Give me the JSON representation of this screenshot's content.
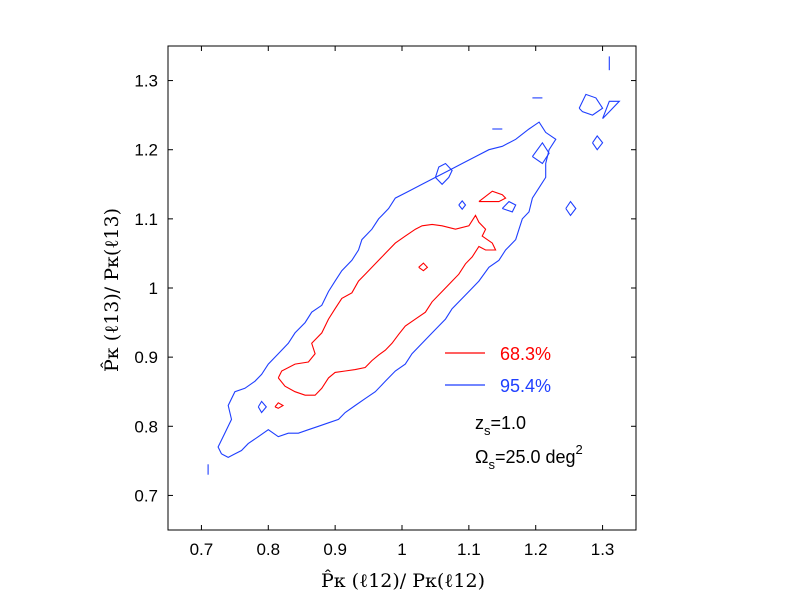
{
  "chart_data": {
    "type": "line",
    "title": "",
    "xlabel": "P̂κ (ℓ12)/ Pκ(ℓ12)",
    "ylabel": "P̂κ (ℓ13)/ Pκ(ℓ13)",
    "xlim": [
      0.65,
      1.35
    ],
    "ylim": [
      0.65,
      1.35
    ],
    "xticks": [
      0.7,
      0.8,
      0.9,
      1.0,
      1.1,
      1.2,
      1.3
    ],
    "xtick_labels": [
      "0.7",
      "0.8",
      "0.9",
      "1",
      "1.1",
      "1.2",
      "1.3"
    ],
    "yticks": [
      0.7,
      0.8,
      0.9,
      1.0,
      1.1,
      1.2,
      1.3
    ],
    "ytick_labels": [
      "0.7",
      "0.8",
      "0.9",
      "1",
      "1.1",
      "1.2",
      "1.3"
    ],
    "grid": false,
    "legend_position": "lower-right",
    "series": [
      {
        "name": "68.3%",
        "color": "#ff0000",
        "contours": [
          [
            [
              0.815,
              0.87
            ],
            [
              0.82,
              0.88
            ],
            [
              0.84,
              0.89
            ],
            [
              0.86,
              0.893
            ],
            [
              0.87,
              0.905
            ],
            [
              0.865,
              0.92
            ],
            [
              0.88,
              0.935
            ],
            [
              0.89,
              0.955
            ],
            [
              0.9,
              0.97
            ],
            [
              0.91,
              0.985
            ],
            [
              0.925,
              0.993
            ],
            [
              0.935,
              1.01
            ],
            [
              0.945,
              1.02
            ],
            [
              0.96,
              1.035
            ],
            [
              0.975,
              1.05
            ],
            [
              0.99,
              1.065
            ],
            [
              1.005,
              1.075
            ],
            [
              1.02,
              1.085
            ],
            [
              1.03,
              1.09
            ],
            [
              1.045,
              1.092
            ],
            [
              1.06,
              1.09
            ],
            [
              1.08,
              1.085
            ],
            [
              1.1,
              1.09
            ],
            [
              1.11,
              1.105
            ],
            [
              1.115,
              1.095
            ],
            [
              1.125,
              1.085
            ],
            [
              1.12,
              1.075
            ],
            [
              1.135,
              1.065
            ],
            [
              1.14,
              1.055
            ],
            [
              1.125,
              1.055
            ],
            [
              1.115,
              1.06
            ],
            [
              1.105,
              1.045
            ],
            [
              1.095,
              1.035
            ],
            [
              1.085,
              1.02
            ],
            [
              1.075,
              1.01
            ],
            [
              1.06,
              0.995
            ],
            [
              1.045,
              0.98
            ],
            [
              1.035,
              0.965
            ],
            [
              1.02,
              0.955
            ],
            [
              1.005,
              0.945
            ],
            [
              0.995,
              0.933
            ],
            [
              0.985,
              0.92
            ],
            [
              0.975,
              0.91
            ],
            [
              0.965,
              0.903
            ],
            [
              0.955,
              0.895
            ],
            [
              0.945,
              0.885
            ],
            [
              0.93,
              0.882
            ],
            [
              0.915,
              0.88
            ],
            [
              0.9,
              0.878
            ],
            [
              0.89,
              0.87
            ],
            [
              0.88,
              0.855
            ],
            [
              0.87,
              0.845
            ],
            [
              0.855,
              0.845
            ],
            [
              0.84,
              0.85
            ],
            [
              0.825,
              0.858
            ],
            [
              0.815,
              0.87
            ]
          ],
          [
            [
              0.81,
              0.828
            ],
            [
              0.815,
              0.834
            ],
            [
              0.822,
              0.83
            ],
            [
              0.815,
              0.826
            ],
            [
              0.81,
              0.828
            ]
          ],
          [
            [
              1.025,
              1.03
            ],
            [
              1.032,
              1.036
            ],
            [
              1.038,
              1.03
            ],
            [
              1.032,
              1.025
            ],
            [
              1.025,
              1.03
            ]
          ],
          [
            [
              1.115,
              1.125
            ],
            [
              1.135,
              1.14
            ],
            [
              1.15,
              1.135
            ],
            [
              1.155,
              1.13
            ],
            [
              1.145,
              1.125
            ],
            [
              1.13,
              1.125
            ],
            [
              1.115,
              1.125
            ]
          ]
        ]
      },
      {
        "name": "95.4%",
        "color": "#1f3fff",
        "contours": [
          [
            [
              0.73,
              0.76
            ],
            [
              0.725,
              0.77
            ],
            [
              0.735,
              0.79
            ],
            [
              0.745,
              0.81
            ],
            [
              0.74,
              0.83
            ],
            [
              0.75,
              0.85
            ],
            [
              0.765,
              0.855
            ],
            [
              0.78,
              0.865
            ],
            [
              0.79,
              0.875
            ],
            [
              0.8,
              0.89
            ],
            [
              0.815,
              0.905
            ],
            [
              0.83,
              0.92
            ],
            [
              0.84,
              0.935
            ],
            [
              0.855,
              0.95
            ],
            [
              0.865,
              0.965
            ],
            [
              0.88,
              0.975
            ],
            [
              0.89,
              0.995
            ],
            [
              0.9,
              1.01
            ],
            [
              0.91,
              1.025
            ],
            [
              0.925,
              1.04
            ],
            [
              0.935,
              1.055
            ],
            [
              0.94,
              1.07
            ],
            [
              0.955,
              1.085
            ],
            [
              0.965,
              1.1
            ],
            [
              0.98,
              1.115
            ],
            [
              0.99,
              1.13
            ],
            [
              1.01,
              1.14
            ],
            [
              1.03,
              1.15
            ],
            [
              1.05,
              1.16
            ],
            [
              1.07,
              1.17
            ],
            [
              1.09,
              1.18
            ],
            [
              1.11,
              1.19
            ],
            [
              1.13,
              1.2
            ],
            [
              1.15,
              1.205
            ],
            [
              1.17,
              1.215
            ],
            [
              1.19,
              1.23
            ],
            [
              1.205,
              1.24
            ],
            [
              1.215,
              1.225
            ],
            [
              1.23,
              1.215
            ],
            [
              1.22,
              1.2
            ],
            [
              1.215,
              1.18
            ],
            [
              1.215,
              1.16
            ],
            [
              1.205,
              1.145
            ],
            [
              1.195,
              1.13
            ],
            [
              1.19,
              1.11
            ],
            [
              1.18,
              1.1
            ],
            [
              1.175,
              1.085
            ],
            [
              1.17,
              1.07
            ],
            [
              1.155,
              1.055
            ],
            [
              1.145,
              1.04
            ],
            [
              1.13,
              1.03
            ],
            [
              1.115,
              1.01
            ],
            [
              1.1,
              0.995
            ],
            [
              1.09,
              0.985
            ],
            [
              1.075,
              0.97
            ],
            [
              1.065,
              0.955
            ],
            [
              1.055,
              0.945
            ],
            [
              1.045,
              0.935
            ],
            [
              1.03,
              0.92
            ],
            [
              1.015,
              0.905
            ],
            [
              1.005,
              0.89
            ],
            [
              0.99,
              0.88
            ],
            [
              0.975,
              0.865
            ],
            [
              0.96,
              0.85
            ],
            [
              0.945,
              0.84
            ],
            [
              0.93,
              0.83
            ],
            [
              0.915,
              0.82
            ],
            [
              0.905,
              0.81
            ],
            [
              0.89,
              0.805
            ],
            [
              0.875,
              0.8
            ],
            [
              0.86,
              0.795
            ],
            [
              0.845,
              0.79
            ],
            [
              0.83,
              0.79
            ],
            [
              0.815,
              0.785
            ],
            [
              0.8,
              0.795
            ],
            [
              0.785,
              0.785
            ],
            [
              0.77,
              0.775
            ],
            [
              0.76,
              0.765
            ],
            [
              0.75,
              0.76
            ],
            [
              0.74,
              0.755
            ],
            [
              0.73,
              0.76
            ]
          ],
          [
            [
              0.785,
              0.828
            ],
            [
              0.79,
              0.836
            ],
            [
              0.797,
              0.828
            ],
            [
              0.79,
              0.82
            ],
            [
              0.785,
              0.828
            ]
          ],
          [
            [
              1.05,
              1.16
            ],
            [
              1.055,
              1.175
            ],
            [
              1.065,
              1.18
            ],
            [
              1.075,
              1.17
            ],
            [
              1.07,
              1.16
            ],
            [
              1.06,
              1.15
            ],
            [
              1.05,
              1.16
            ]
          ],
          [
            [
              1.085,
              1.12
            ],
            [
              1.09,
              1.126
            ],
            [
              1.095,
              1.12
            ],
            [
              1.09,
              1.114
            ],
            [
              1.085,
              1.12
            ]
          ],
          [
            [
              1.15,
              1.115
            ],
            [
              1.16,
              1.125
            ],
            [
              1.17,
              1.12
            ],
            [
              1.165,
              1.11
            ],
            [
              1.15,
              1.115
            ]
          ],
          [
            [
              1.195,
              1.19
            ],
            [
              1.21,
              1.21
            ],
            [
              1.22,
              1.195
            ],
            [
              1.21,
              1.18
            ],
            [
              1.195,
              1.19
            ]
          ],
          [
            [
              1.245,
              1.115
            ],
            [
              1.252,
              1.125
            ],
            [
              1.26,
              1.115
            ],
            [
              1.252,
              1.105
            ],
            [
              1.245,
              1.115
            ]
          ],
          [
            [
              1.285,
              1.21
            ],
            [
              1.292,
              1.22
            ],
            [
              1.3,
              1.21
            ],
            [
              1.292,
              1.2
            ],
            [
              1.285,
              1.21
            ]
          ],
          [
            [
              1.265,
              1.26
            ],
            [
              1.275,
              1.28
            ],
            [
              1.29,
              1.275
            ],
            [
              1.3,
              1.26
            ],
            [
              1.285,
              1.25
            ],
            [
              1.27,
              1.255
            ],
            [
              1.265,
              1.26
            ]
          ],
          [
            [
              1.3,
              1.245
            ],
            [
              1.31,
              1.27
            ],
            [
              1.325,
              1.27
            ],
            [
              1.31,
              1.255
            ],
            [
              1.3,
              1.245
            ]
          ],
          [
            [
              1.195,
              1.275
            ],
            [
              1.21,
              1.275
            ]
          ],
          [
            [
              1.135,
              1.23
            ],
            [
              1.15,
              1.23
            ]
          ],
          [
            [
              1.31,
              1.315
            ],
            [
              1.31,
              1.335
            ]
          ],
          [
            [
              0.71,
              0.73
            ],
            [
              0.71,
              0.745
            ]
          ]
        ]
      }
    ],
    "annotations": {
      "zs_main": "z",
      "zs_sub": "s",
      "zs_value": "=1.0",
      "omega_main": "Ω",
      "omega_sub": "s",
      "omega_value": "=25.0 deg",
      "omega_sup": "2"
    }
  }
}
